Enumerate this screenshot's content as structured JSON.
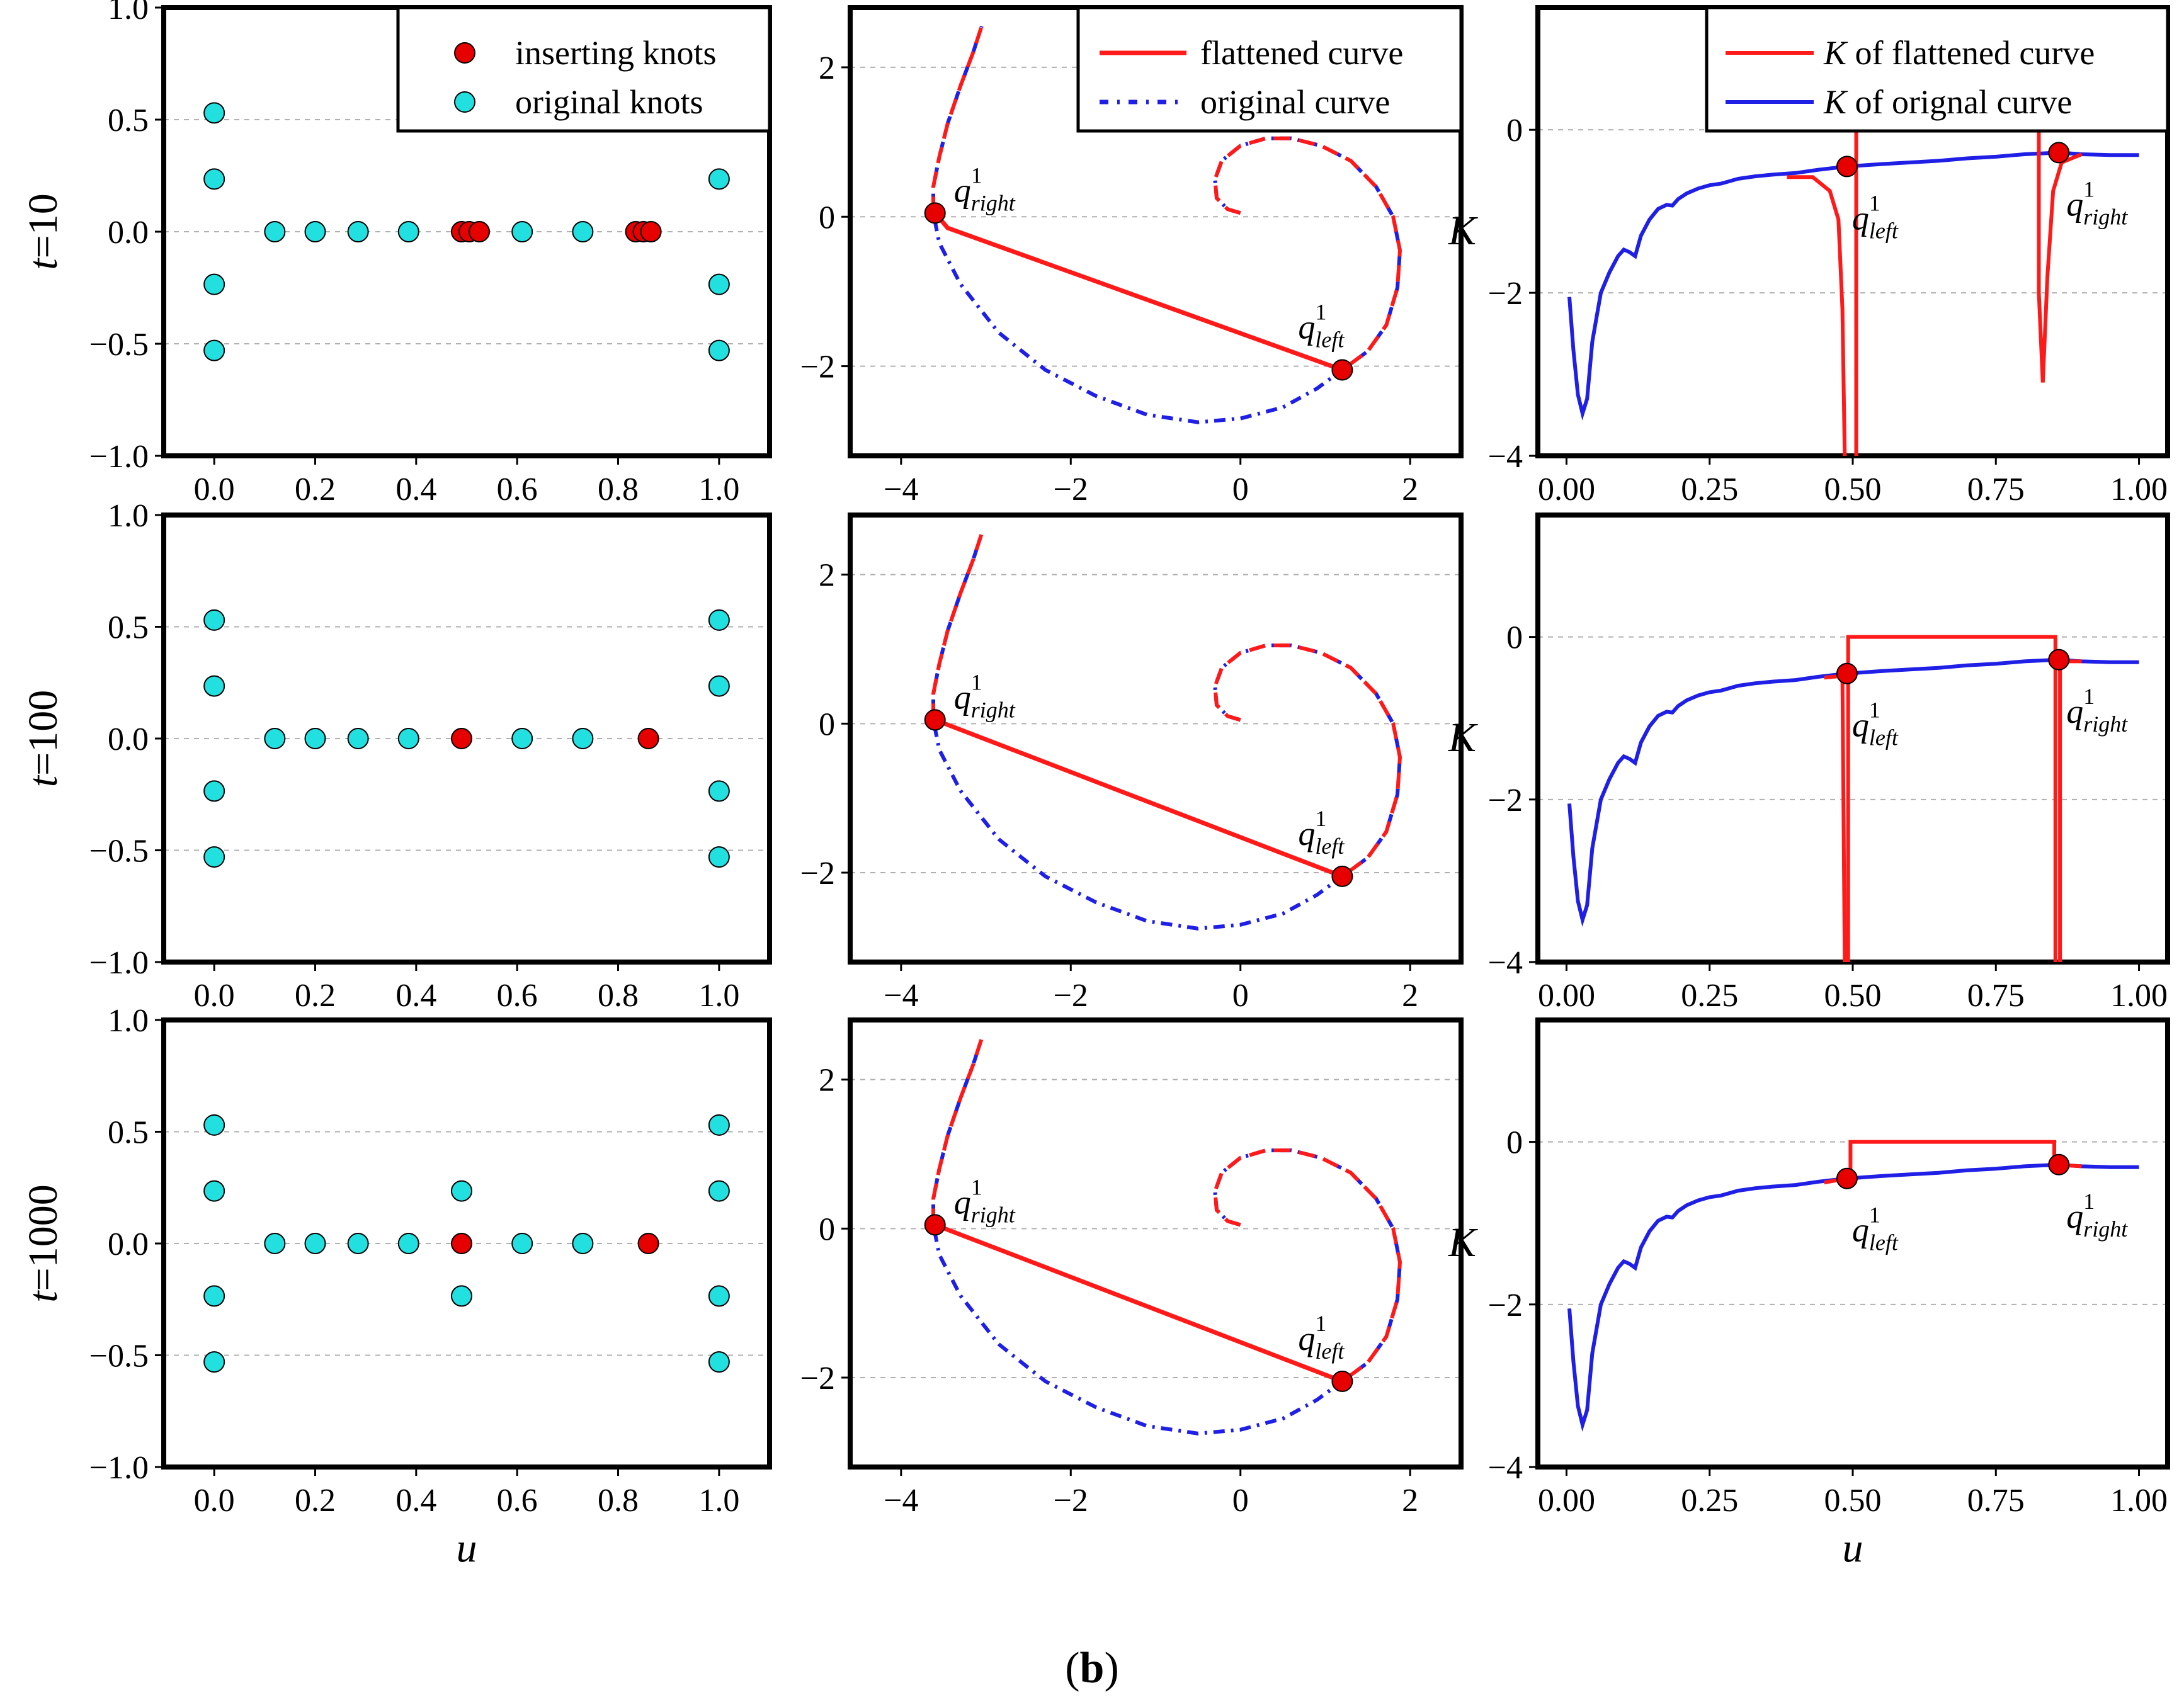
{
  "caption": {
    "open": "(",
    "letter": "b",
    "close": ")"
  },
  "colors": {
    "inserting": "#e60000",
    "original": "#22e0e0",
    "flat": "#ff1a1a",
    "orig_curve": "#1f1fe6",
    "grid": "#b0b0b0"
  },
  "chart_data": [
    {
      "type": "scatter",
      "id": "knots-t10",
      "row_label_var": "t",
      "row_label_val": "=10",
      "xlabel": "",
      "ylabel": "",
      "xlim": [
        -0.1,
        1.1
      ],
      "ylim": [
        -1.0,
        1.0
      ],
      "xticks": [
        0,
        0.2,
        0.4,
        0.6,
        0.8,
        1.0
      ],
      "xtick_labels": [
        "0.0",
        "0.2",
        "0.4",
        "0.6",
        "0.8",
        "1.0"
      ],
      "yticks": [
        -1,
        -0.5,
        0,
        0.5,
        1
      ],
      "ytick_labels": [
        "−1.0",
        "−0.5",
        "0.0",
        "0.5",
        "1.0"
      ],
      "legend": [
        "inserting knots",
        "original knots"
      ],
      "original": [
        [
          0,
          0.53
        ],
        [
          0,
          0.235
        ],
        [
          0,
          -0.235
        ],
        [
          0,
          -0.53
        ],
        [
          0.12,
          0
        ],
        [
          0.2,
          0
        ],
        [
          0.285,
          0
        ],
        [
          0.385,
          0
        ],
        [
          0.61,
          0
        ],
        [
          0.73,
          0
        ],
        [
          1,
          0.53
        ],
        [
          1,
          0.235
        ],
        [
          1,
          -0.235
        ],
        [
          1,
          -0.53
        ]
      ],
      "inserting": [
        [
          0.49,
          0
        ],
        [
          0.505,
          0
        ],
        [
          0.525,
          0
        ],
        [
          0.835,
          0
        ],
        [
          0.85,
          0
        ],
        [
          0.865,
          0
        ]
      ]
    },
    {
      "type": "line",
      "id": "curve-t10",
      "xlim": [
        -4.6,
        2.6
      ],
      "ylim": [
        -3.2,
        2.8
      ],
      "xticks": [
        -4,
        -2,
        0,
        2
      ],
      "xtick_labels": [
        "−4",
        "−2",
        "0",
        "2"
      ],
      "yticks": [
        -2,
        0,
        2
      ],
      "ytick_labels": [
        "−2",
        "0",
        "2"
      ],
      "legend": [
        "flattened curve",
        "original curve"
      ],
      "flat_start": [
        -3.45,
        -0.15
      ],
      "q_right": [
        -3.6,
        0.05
      ],
      "q_left": [
        1.2,
        -2.05
      ],
      "ann_right": {
        "base": "q",
        "sup": "1",
        "sub": "right"
      },
      "ann_left": {
        "base": "q",
        "sup": "1",
        "sub": "left"
      }
    },
    {
      "type": "line",
      "id": "K-t10",
      "ylabel": "K",
      "xlim": [
        -0.05,
        1.05
      ],
      "ylim": [
        -4.0,
        1.5
      ],
      "xticks": [
        0,
        0.25,
        0.5,
        0.75,
        1.0
      ],
      "xtick_labels": [
        "0.00",
        "0.25",
        "0.50",
        "0.75",
        "1.00"
      ],
      "yticks": [
        -4,
        -2,
        0
      ],
      "ytick_labels": [
        "−4",
        "−2",
        "0"
      ],
      "legend": [
        {
          "var": "K",
          "text": " of flattened curve"
        },
        {
          "var": "K",
          "text": " of orignal curve"
        }
      ],
      "flat_segments": [
        [
          [
            0.385,
            -0.58
          ],
          [
            0.43,
            -0.58
          ],
          [
            0.46,
            -0.75
          ],
          [
            0.475,
            -1.1
          ],
          [
            0.482,
            -2.2
          ],
          [
            0.486,
            -4.0
          ]
        ],
        [
          [
            0.506,
            -4.0
          ],
          [
            0.506,
            0
          ],
          [
            0.825,
            0
          ],
          [
            0.825,
            -2.0
          ],
          [
            0.832,
            -3.1
          ],
          [
            0.84,
            -1.8
          ],
          [
            0.85,
            -0.75
          ],
          [
            0.865,
            -0.4
          ],
          [
            0.9,
            -0.3
          ]
        ]
      ],
      "q_left": [
        0.49,
        -0.45
      ],
      "q_right": [
        0.86,
        -0.28
      ],
      "ann_left": {
        "base": "q",
        "sup": "1",
        "sub": "left"
      },
      "ann_right": {
        "base": "q",
        "sup": "1",
        "sub": "right"
      }
    },
    {
      "type": "scatter",
      "id": "knots-t100",
      "row_label_var": "t",
      "row_label_val": "=100",
      "xlim": [
        -0.1,
        1.1
      ],
      "ylim": [
        -1.0,
        1.0
      ],
      "xticks": [
        0,
        0.2,
        0.4,
        0.6,
        0.8,
        1.0
      ],
      "xtick_labels": [
        "0.0",
        "0.2",
        "0.4",
        "0.6",
        "0.8",
        "1.0"
      ],
      "yticks": [
        -1,
        -0.5,
        0,
        0.5,
        1
      ],
      "ytick_labels": [
        "−1.0",
        "−0.5",
        "0.0",
        "0.5",
        "1.0"
      ],
      "original": [
        [
          0,
          0.53
        ],
        [
          0,
          0.235
        ],
        [
          0,
          -0.235
        ],
        [
          0,
          -0.53
        ],
        [
          0.12,
          0
        ],
        [
          0.2,
          0
        ],
        [
          0.285,
          0
        ],
        [
          0.385,
          0
        ],
        [
          0.61,
          0
        ],
        [
          0.73,
          0
        ],
        [
          1,
          0.53
        ],
        [
          1,
          0.235
        ],
        [
          1,
          -0.235
        ],
        [
          1,
          -0.53
        ]
      ],
      "inserting": [
        [
          0.49,
          0
        ],
        [
          0.86,
          0
        ]
      ]
    },
    {
      "type": "line",
      "id": "curve-t100",
      "xlim": [
        -4.6,
        2.6
      ],
      "ylim": [
        -3.2,
        2.8
      ],
      "xticks": [
        -4,
        -2,
        0,
        2
      ],
      "xtick_labels": [
        "−4",
        "−2",
        "0",
        "2"
      ],
      "yticks": [
        -2,
        0,
        2
      ],
      "ytick_labels": [
        "−2",
        "0",
        "2"
      ],
      "flat_start": [
        -3.6,
        0.05
      ],
      "q_right": [
        -3.6,
        0.05
      ],
      "q_left": [
        1.2,
        -2.05
      ],
      "ann_right": {
        "base": "q",
        "sup": "1",
        "sub": "right"
      },
      "ann_left": {
        "base": "q",
        "sup": "1",
        "sub": "left"
      }
    },
    {
      "type": "line",
      "id": "K-t100",
      "ylabel": "K",
      "xlim": [
        -0.05,
        1.05
      ],
      "ylim": [
        -4.0,
        1.5
      ],
      "xticks": [
        0,
        0.25,
        0.5,
        0.75,
        1.0
      ],
      "xtick_labels": [
        "0.00",
        "0.25",
        "0.50",
        "0.75",
        "1.00"
      ],
      "yticks": [
        -4,
        -2,
        0
      ],
      "ytick_labels": [
        "−4",
        "−2",
        "0"
      ],
      "flat_segments": [
        [
          [
            0.45,
            -0.5
          ],
          [
            0.482,
            -0.48
          ],
          [
            0.486,
            -4.0
          ]
        ],
        [
          [
            0.492,
            -4.0
          ],
          [
            0.492,
            0
          ],
          [
            0.854,
            0
          ],
          [
            0.854,
            -4.0
          ]
        ],
        [
          [
            0.862,
            -4.0
          ],
          [
            0.862,
            -0.3
          ],
          [
            0.9,
            -0.3
          ]
        ]
      ],
      "q_left": [
        0.49,
        -0.45
      ],
      "q_right": [
        0.86,
        -0.28
      ],
      "ann_left": {
        "base": "q",
        "sup": "1",
        "sub": "left"
      },
      "ann_right": {
        "base": "q",
        "sup": "1",
        "sub": "right"
      }
    },
    {
      "type": "scatter",
      "id": "knots-t1000",
      "row_label_var": "t",
      "row_label_val": "=1000",
      "xlabel": "u",
      "xlim": [
        -0.1,
        1.1
      ],
      "ylim": [
        -1.0,
        1.0
      ],
      "xticks": [
        0,
        0.2,
        0.4,
        0.6,
        0.8,
        1.0
      ],
      "xtick_labels": [
        "0.0",
        "0.2",
        "0.4",
        "0.6",
        "0.8",
        "1.0"
      ],
      "yticks": [
        -1,
        -0.5,
        0,
        0.5,
        1
      ],
      "ytick_labels": [
        "−1.0",
        "−0.5",
        "0.0",
        "0.5",
        "1.0"
      ],
      "original": [
        [
          0,
          0.53
        ],
        [
          0,
          0.235
        ],
        [
          0,
          -0.235
        ],
        [
          0,
          -0.53
        ],
        [
          0.12,
          0
        ],
        [
          0.2,
          0
        ],
        [
          0.285,
          0
        ],
        [
          0.385,
          0
        ],
        [
          0.49,
          0.235
        ],
        [
          0.49,
          -0.235
        ],
        [
          0.61,
          0
        ],
        [
          0.73,
          0
        ],
        [
          1,
          0.53
        ],
        [
          1,
          0.235
        ],
        [
          1,
          -0.235
        ],
        [
          1,
          -0.53
        ]
      ],
      "inserting": [
        [
          0.49,
          0
        ],
        [
          0.86,
          0
        ]
      ]
    },
    {
      "type": "line",
      "id": "curve-t1000",
      "xlim": [
        -4.6,
        2.6
      ],
      "ylim": [
        -3.2,
        2.8
      ],
      "xticks": [
        -4,
        -2,
        0,
        2
      ],
      "xtick_labels": [
        "−4",
        "−2",
        "0",
        "2"
      ],
      "yticks": [
        -2,
        0,
        2
      ],
      "ytick_labels": [
        "−2",
        "0",
        "2"
      ],
      "flat_start": [
        -3.6,
        0.05
      ],
      "q_right": [
        -3.6,
        0.05
      ],
      "q_left": [
        1.2,
        -2.05
      ],
      "ann_right": {
        "base": "q",
        "sup": "1",
        "sub": "right"
      },
      "ann_left": {
        "base": "q",
        "sup": "1",
        "sub": "left"
      }
    },
    {
      "type": "line",
      "id": "K-t1000",
      "ylabel": "K",
      "xlabel": "u",
      "xlim": [
        -0.05,
        1.05
      ],
      "ylim": [
        -4.0,
        1.5
      ],
      "xticks": [
        0,
        0.25,
        0.5,
        0.75,
        1.0
      ],
      "xtick_labels": [
        "0.00",
        "0.25",
        "0.50",
        "0.75",
        "1.00"
      ],
      "yticks": [
        -4,
        -2,
        0
      ],
      "ytick_labels": [
        "−4",
        "−2",
        "0"
      ],
      "flat_segments": [
        [
          [
            0.45,
            -0.5
          ],
          [
            0.49,
            -0.45
          ],
          [
            0.496,
            -0.45
          ],
          [
            0.496,
            0
          ],
          [
            0.852,
            0
          ],
          [
            0.852,
            -0.28
          ],
          [
            0.9,
            -0.3
          ]
        ]
      ],
      "q_left": [
        0.49,
        -0.45
      ],
      "q_right": [
        0.86,
        -0.28
      ],
      "ann_left": {
        "base": "q",
        "sup": "1",
        "sub": "left"
      },
      "ann_right": {
        "base": "q",
        "sup": "1",
        "sub": "right"
      }
    }
  ],
  "K_original": [
    [
      0.005,
      -2.05
    ],
    [
      0.012,
      -2.7
    ],
    [
      0.02,
      -3.25
    ],
    [
      0.028,
      -3.48
    ],
    [
      0.036,
      -3.3
    ],
    [
      0.045,
      -2.6
    ],
    [
      0.06,
      -2.0
    ],
    [
      0.075,
      -1.75
    ],
    [
      0.09,
      -1.55
    ],
    [
      0.1,
      -1.47
    ],
    [
      0.11,
      -1.5
    ],
    [
      0.12,
      -1.55
    ],
    [
      0.13,
      -1.3
    ],
    [
      0.145,
      -1.1
    ],
    [
      0.16,
      -0.97
    ],
    [
      0.175,
      -0.92
    ],
    [
      0.185,
      -0.93
    ],
    [
      0.195,
      -0.85
    ],
    [
      0.21,
      -0.78
    ],
    [
      0.23,
      -0.72
    ],
    [
      0.25,
      -0.68
    ],
    [
      0.27,
      -0.66
    ],
    [
      0.3,
      -0.6
    ],
    [
      0.33,
      -0.57
    ],
    [
      0.36,
      -0.55
    ],
    [
      0.4,
      -0.53
    ],
    [
      0.44,
      -0.49
    ],
    [
      0.49,
      -0.45
    ],
    [
      0.55,
      -0.42
    ],
    [
      0.6,
      -0.4
    ],
    [
      0.65,
      -0.38
    ],
    [
      0.7,
      -0.35
    ],
    [
      0.75,
      -0.33
    ],
    [
      0.8,
      -0.3
    ],
    [
      0.86,
      -0.28
    ],
    [
      0.9,
      -0.3
    ],
    [
      0.95,
      -0.31
    ],
    [
      1.0,
      -0.31
    ]
  ],
  "orig_curve": {
    "center": [
      -0.45,
      0.0
    ],
    "a0": 0.0,
    "a1": 10.2,
    "b": 0.14,
    "ratio_per_rad": 0.11
  }
}
